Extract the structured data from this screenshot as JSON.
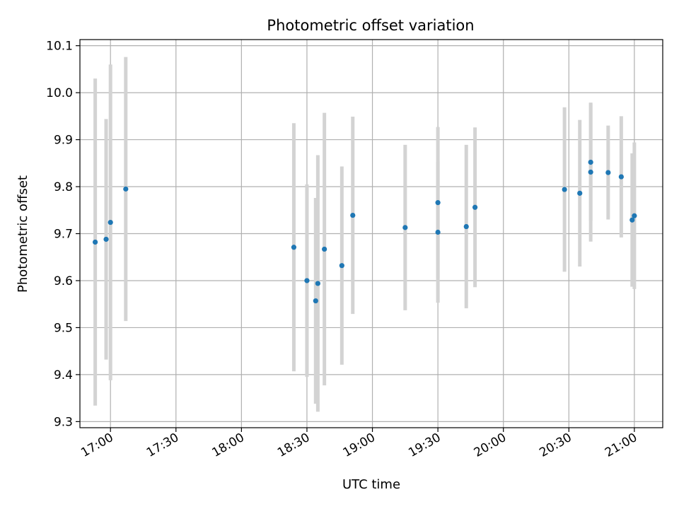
{
  "chart_data": {
    "type": "scatter",
    "title": "Photometric offset variation",
    "xlabel": "UTC time",
    "ylabel": "Photometric offset",
    "grid": true,
    "x_ticks": [
      "17:00",
      "17:30",
      "18:00",
      "18:30",
      "19:00",
      "19:30",
      "20:00",
      "20:30",
      "21:00"
    ],
    "y_ticks": [
      9.3,
      9.4,
      9.5,
      9.6,
      9.7,
      9.8,
      9.9,
      10.0,
      10.1
    ],
    "xlim": [
      "16:46",
      "21:13"
    ],
    "ylim": [
      9.287,
      10.113
    ],
    "colors": {
      "point": "#1f77b4",
      "errorbar": "#d3d3d3",
      "grid": "#b0b0b0"
    },
    "points": [
      {
        "x": "16:53",
        "y": 9.682,
        "yerr": 0.348
      },
      {
        "x": "16:58",
        "y": 9.688,
        "yerr": 0.256
      },
      {
        "x": "17:00",
        "y": 9.724,
        "yerr": 0.336
      },
      {
        "x": "17:07",
        "y": 9.795,
        "yerr": 0.281
      },
      {
        "x": "18:24",
        "y": 9.671,
        "yerr": 0.264
      },
      {
        "x": "18:30",
        "y": 9.6,
        "yerr": 0.205
      },
      {
        "x": "18:34",
        "y": 9.557,
        "yerr": 0.219
      },
      {
        "x": "18:35",
        "y": 9.594,
        "yerr": 0.273
      },
      {
        "x": "18:38",
        "y": 9.667,
        "yerr": 0.29
      },
      {
        "x": "18:46",
        "y": 9.632,
        "yerr": 0.211
      },
      {
        "x": "18:51",
        "y": 9.739,
        "yerr": 0.21
      },
      {
        "x": "19:15",
        "y": 9.713,
        "yerr": 0.176
      },
      {
        "x": "19:30",
        "y": 9.703,
        "yerr": 0.15
      },
      {
        "x": "19:30",
        "y": 9.766,
        "yerr": 0.161
      },
      {
        "x": "19:43",
        "y": 9.715,
        "yerr": 0.174
      },
      {
        "x": "19:47",
        "y": 9.756,
        "yerr": 0.17
      },
      {
        "x": "20:28",
        "y": 9.794,
        "yerr": 0.175
      },
      {
        "x": "20:35",
        "y": 9.786,
        "yerr": 0.156
      },
      {
        "x": "20:40",
        "y": 9.852,
        "yerr": 0.125
      },
      {
        "x": "20:40",
        "y": 9.831,
        "yerr": 0.148
      },
      {
        "x": "20:48",
        "y": 9.83,
        "yerr": 0.1
      },
      {
        "x": "20:54",
        "y": 9.821,
        "yerr": 0.129
      },
      {
        "x": "20:59",
        "y": 9.729,
        "yerr": 0.142
      },
      {
        "x": "21:00",
        "y": 9.738,
        "yerr": 0.156
      }
    ]
  }
}
